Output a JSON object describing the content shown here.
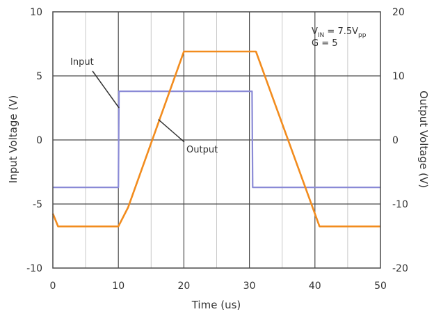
{
  "chart_data": {
    "type": "line",
    "xlabel": "Time (us)",
    "ylabel_left": "Input Voltage (V)",
    "ylabel_right": "Output Voltage (V)",
    "xlim": [
      0,
      50
    ],
    "ylim_left": [
      -10,
      10
    ],
    "ylim_right": [
      -20,
      20
    ],
    "x_ticks": [
      "0",
      "10",
      "20",
      "30",
      "40",
      "50"
    ],
    "y_left_ticks": [
      "-10",
      "-5",
      "0",
      "5",
      "10"
    ],
    "y_right_ticks": [
      "-20",
      "-10",
      "0",
      "10",
      "20"
    ],
    "grid": true,
    "annotation": {
      "vin_prefix": "V",
      "vin_sub": "IN",
      "vin_mid": " = 7.5V",
      "vin_sub2": "pp",
      "gain": "G = 5"
    },
    "series": [
      {
        "name": "Input",
        "axis": "left",
        "color": "#8a8ad6",
        "x": [
          0,
          10.0,
          10.1,
          30.4,
          30.5,
          50
        ],
        "y": [
          -3.7,
          -3.7,
          3.8,
          3.8,
          -3.7,
          -3.7
        ]
      },
      {
        "name": "Output",
        "axis": "right",
        "color": "#f28c1e",
        "x": [
          0,
          0.8,
          10.0,
          10.5,
          11.5,
          20.0,
          31.0,
          40.7,
          50
        ],
        "y": [
          -11.5,
          -13.5,
          -13.5,
          -12.5,
          -10.5,
          13.8,
          13.8,
          -13.5,
          -13.5
        ]
      }
    ],
    "labels": [
      {
        "text": "Input",
        "series": "Input"
      },
      {
        "text": "Output",
        "series": "Output"
      }
    ]
  },
  "colors": {
    "grid_minor": "#c8c8c8",
    "grid_major": "#4a4a4a",
    "frame": "#4a4a4a",
    "leader": "#333333"
  }
}
